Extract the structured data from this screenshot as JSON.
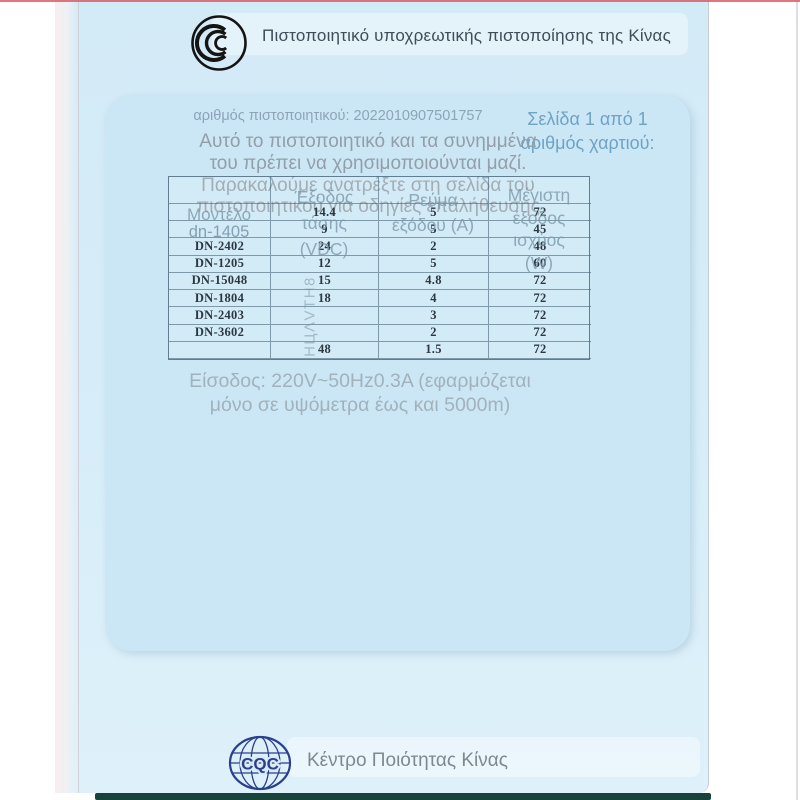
{
  "header": {
    "title": "Πιστοποιητικό υποχρεωτικής πιστοποίησης της Κίνας"
  },
  "meta": {
    "cert_number": "αριθμός πιστοποιητικού: 2022010907501757",
    "page_info_line1": "Σελίδα 1 από 1",
    "page_info_line2": "αριθμός χαρτιού:"
  },
  "notice": {
    "line1": "Αυτό το πιστοποιητικό και τα συνημμένα",
    "line2": "του πρέπει να χρησιμοποιούνται μαζί.",
    "line3": "Παρακαλούμε ανατρέξτε στη σελίδα του",
    "line4": "πιστοποιητικού για οδηγίες επαλήθευσης"
  },
  "table": {
    "overlay_headers": {
      "model": "Μοντέλο",
      "model_gray": "dn-1405",
      "voltage": [
        "Έξοδος",
        "τάσης",
        "(VDC)"
      ],
      "current": [
        "Ρεύμα",
        "εξόδου (Α)"
      ],
      "power": [
        "Μέγιστη",
        "έξοδος",
        "ισχύος",
        "(W)"
      ],
      "vertical_artifact": "ΗЦΛVΤΗ8"
    },
    "rows": [
      [
        "",
        "",
        "",
        ""
      ],
      [
        "",
        "14.4",
        "5",
        "72"
      ],
      [
        "",
        "9",
        "5",
        "45"
      ],
      [
        "DN-2402",
        "24",
        "2",
        "48"
      ],
      [
        "DN-1205",
        "12",
        "5",
        "60"
      ],
      [
        "DN-15048",
        "15",
        "4.8",
        "72"
      ],
      [
        "DN-1804",
        "18",
        "4",
        "72"
      ],
      [
        "DN-2403",
        "",
        "3",
        "72"
      ],
      [
        "DN-3602",
        "",
        "2",
        "72"
      ],
      [
        "",
        "48",
        "1.5",
        "72"
      ]
    ]
  },
  "input_spec": {
    "line1": "Είσοδος: 220V~50Hz0.3A (εφαρμόζεται",
    "line2": "μόνο σε υψόμετρα έως και 5000m)"
  },
  "footer": {
    "org": "Κέντρο Ποιότητας Κίνας",
    "cqc_letters": "CQC"
  },
  "colors": {
    "page_blue": "#d5ecf8",
    "inner_panel_blue": "#cbe7f6",
    "overlay_gray_blue": "#7d98ab",
    "print_black": "#2c3740",
    "title_gray": "#3f4d58",
    "page_info_blue": "#6fa3c4",
    "teal_bar": "#17433b",
    "red_edge": "#d75560",
    "cqc_navy": "#2b3f8e"
  }
}
